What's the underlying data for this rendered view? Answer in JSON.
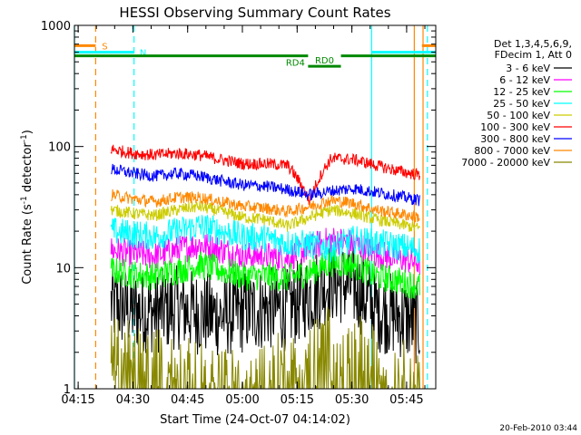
{
  "chart_data": {
    "type": "line",
    "title": "HESSI Observing Summary Count Rates",
    "xlabel": "Start Time (24-Oct-07 04:14:02)",
    "ylabel": "Count Rate (s⁻¹ detector⁻¹)",
    "ylabel_base": "Count Rate (s",
    "ylabel_mid": " detector",
    "ylabel_end": ")",
    "ylabel_sup": "-1",
    "y_scale": "log",
    "xlim": [
      4.233,
      5.883
    ],
    "ylim": [
      1,
      1000
    ],
    "x_ticks": [
      {
        "value": 4.25,
        "label": "04:15"
      },
      {
        "value": 4.5,
        "label": "04:30"
      },
      {
        "value": 4.75,
        "label": "04:45"
      },
      {
        "value": 5.0,
        "label": "05:00"
      },
      {
        "value": 5.25,
        "label": "05:15"
      },
      {
        "value": 5.5,
        "label": "05:30"
      },
      {
        "value": 5.75,
        "label": "05:45"
      }
    ],
    "y_ticks": [
      {
        "value": 1,
        "label": "1"
      },
      {
        "value": 10,
        "label": "10"
      },
      {
        "value": 100,
        "label": "100"
      },
      {
        "value": 1000,
        "label": "1000"
      }
    ],
    "legend_header": [
      "Det 1,3,4,5,6,9,",
      "FDecim 1, Att 0"
    ],
    "legend_position": "right",
    "x_range": [
      4.4,
      5.81
    ],
    "series": [
      {
        "name": "3 - 6 keV",
        "color": "#000000",
        "levels": [
          5.0,
          4.5,
          4.3,
          4.7,
          4.2,
          4.0,
          4.3,
          4.6,
          4.5,
          6.0,
          7.8,
          7.0,
          4.5,
          4.0,
          3.4
        ]
      },
      {
        "name": "6 - 12 keV",
        "color": "#ff00ff",
        "levels": [
          14.0,
          13.0,
          12.5,
          14.0,
          15.5,
          14.0,
          12.5,
          12.5,
          12.0,
          14.5,
          17.0,
          16.0,
          13.0,
          12.0,
          11.0
        ]
      },
      {
        "name": "12 - 25 keV",
        "color": "#00ff00",
        "levels": [
          9.5,
          8.8,
          8.5,
          9.5,
          10.5,
          9.5,
          8.5,
          8.5,
          8.2,
          9.2,
          11.0,
          10.5,
          8.5,
          7.8,
          7.0
        ]
      },
      {
        "name": "25 - 50 keV",
        "color": "#00ffff",
        "levels": [
          20.0,
          19.0,
          18.0,
          20.0,
          22.0,
          20.0,
          18.0,
          17.5,
          16.0,
          15.5,
          14.5,
          17.0,
          16.0,
          15.0,
          14.0
        ]
      },
      {
        "name": "50 - 100 keV",
        "color": "#cccc00",
        "levels": [
          30.0,
          28.0,
          27.0,
          30.0,
          32.0,
          29.0,
          26.0,
          25.0,
          22.0,
          26.0,
          30.0,
          28.0,
          25.0,
          23.0,
          21.0
        ]
      },
      {
        "name": "100 - 300 keV",
        "color": "#ff0000",
        "levels": [
          95.0,
          88.0,
          85.0,
          88.0,
          85.0,
          78.0,
          72.0,
          72.0,
          70.0,
          35.0,
          80.0,
          78.0,
          70.0,
          63.0,
          58.0
        ]
      },
      {
        "name": "300 - 800 keV",
        "color": "#0000ff",
        "levels": [
          65.0,
          60.0,
          57.0,
          60.0,
          57.0,
          52.0,
          48.0,
          47.0,
          44.0,
          40.0,
          43.0,
          45.0,
          42.0,
          39.0,
          36.0
        ]
      },
      {
        "name": "800 - 7000 keV",
        "color": "#ff8800",
        "levels": [
          40.0,
          37.0,
          35.0,
          38.0,
          38.0,
          35.0,
          32.0,
          31.0,
          29.0,
          32.0,
          36.0,
          34.0,
          30.0,
          28.0,
          26.0
        ]
      },
      {
        "name": "7000 - 20000 keV",
        "color": "#888800",
        "levels": [
          1.8,
          1.6,
          1.5,
          1.3,
          1.1,
          1.0,
          1.0,
          1.2,
          1.4,
          1.6,
          2.3,
          2.0,
          1.5,
          1.2,
          1.1
        ]
      }
    ],
    "vertical_markers": [
      {
        "x": 4.233,
        "color": "#00ffff",
        "style": "solid"
      },
      {
        "x": 4.33,
        "color": "#ff8800",
        "style": "dashed"
      },
      {
        "x": 4.505,
        "color": "#00ffff",
        "style": "dashed"
      },
      {
        "x": 5.59,
        "color": "#00ffff",
        "style": "solid"
      },
      {
        "x": 5.785,
        "color": "#ff8800",
        "style": "solid"
      },
      {
        "x": 5.825,
        "color": "#ff8800",
        "style": "solid"
      },
      {
        "x": 5.845,
        "color": "#00ffff",
        "style": "dashed"
      }
    ],
    "flag_bars": [
      {
        "label": "S",
        "color": "#ff8800",
        "segments": [
          [
            4.233,
            4.33
          ],
          [
            5.82,
            5.883
          ]
        ],
        "y": 680
      },
      {
        "label": "N",
        "color": "#00ffff",
        "segments": [
          [
            4.233,
            4.505
          ],
          [
            5.59,
            5.883
          ]
        ],
        "y": 600
      },
      {
        "label": "RD0",
        "color": "#008800",
        "segments": [
          [
            5.3,
            5.45
          ]
        ],
        "y": 460
      },
      {
        "label": "RD4",
        "color": "#008800",
        "segments": [
          [
            4.233,
            5.3
          ],
          [
            5.45,
            5.883
          ]
        ],
        "y": 560
      }
    ]
  },
  "timestamp": "20-Feb-2010 03:44"
}
